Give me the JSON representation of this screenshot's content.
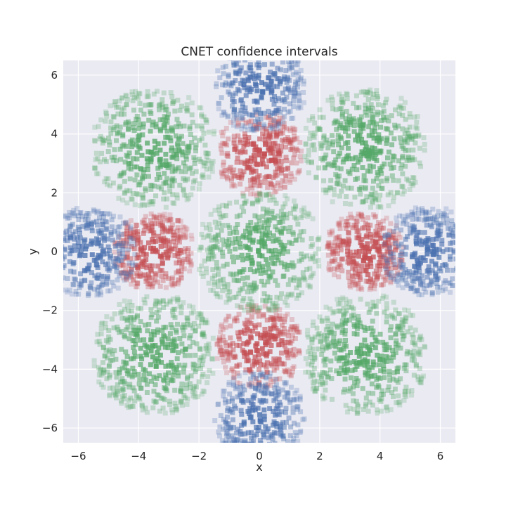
{
  "chart_data": {
    "type": "scatter",
    "title": "CNET confidence intervals",
    "xlabel": "x",
    "ylabel": "y",
    "xlim": [
      -6.5,
      6.5
    ],
    "ylim": [
      -6.5,
      6.5
    ],
    "xticks": [
      -6,
      -4,
      -2,
      0,
      2,
      4,
      6
    ],
    "yticks": [
      -6,
      -4,
      -2,
      0,
      2,
      4,
      6
    ],
    "xtick_labels": [
      "−6",
      "−4",
      "−2",
      "0",
      "2",
      "4",
      "6"
    ],
    "ytick_labels": [
      "−6",
      "−4",
      "−2",
      "0",
      "2",
      "4",
      "6"
    ],
    "grid": true,
    "marker": "square",
    "background": "#eaeaf2",
    "series": [
      {
        "color": "#c44e52",
        "regions": [
          {
            "center": [
              0,
              3.3
            ],
            "extent": 1.4
          },
          {
            "center": [
              0,
              -3.2
            ],
            "extent": 1.4
          },
          {
            "center": [
              -3.5,
              0
            ],
            "extent": 1.3
          },
          {
            "center": [
              3.5,
              0
            ],
            "extent": 1.3
          }
        ]
      },
      {
        "color": "#55a868",
        "regions": [
          {
            "center": [
              -3.5,
              3.5
            ],
            "extent": 2.0
          },
          {
            "center": [
              3.5,
              3.5
            ],
            "extent": 2.0
          },
          {
            "center": [
              -3.5,
              -3.5
            ],
            "extent": 2.0
          },
          {
            "center": [
              3.5,
              -3.5
            ],
            "extent": 2.0
          },
          {
            "center": [
              0,
              0
            ],
            "extent": 2.0
          }
        ]
      },
      {
        "color": "#4c72b0",
        "regions": [
          {
            "center": [
              0,
              5.6
            ],
            "extent": 1.5
          },
          {
            "center": [
              0,
              -5.6
            ],
            "extent": 1.5
          },
          {
            "center": [
              -5.6,
              0
            ],
            "extent": 1.5
          },
          {
            "center": [
              5.6,
              0
            ],
            "extent": 1.5
          }
        ]
      }
    ]
  }
}
